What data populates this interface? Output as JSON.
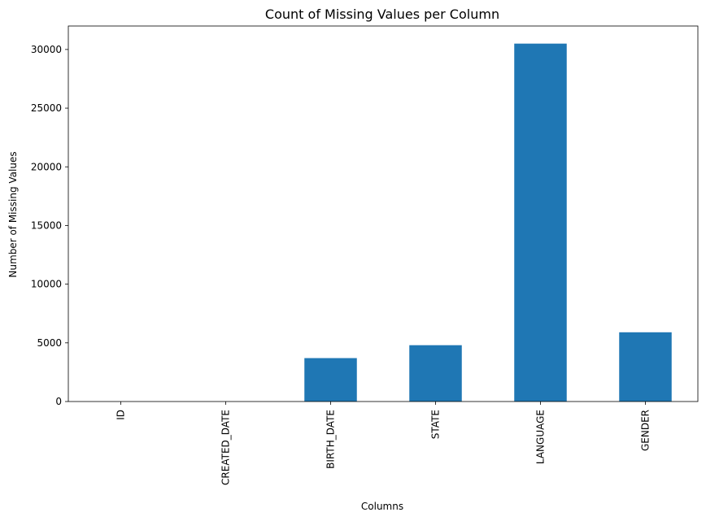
{
  "chart_data": {
    "type": "bar",
    "title": "Count of Missing Values per Column",
    "xlabel": "Columns",
    "ylabel": "Number of Missing Values",
    "categories": [
      "ID",
      "CREATED_DATE",
      "BIRTH_DATE",
      "STATE",
      "LANGUAGE",
      "GENDER"
    ],
    "values": [
      0,
      0,
      3700,
      4800,
      30500,
      5900
    ],
    "ylim": [
      0,
      32000
    ],
    "yticks": [
      0,
      5000,
      10000,
      15000,
      20000,
      25000,
      30000
    ],
    "bar_color": "#1f77b4",
    "grid": false,
    "legend": "none"
  }
}
